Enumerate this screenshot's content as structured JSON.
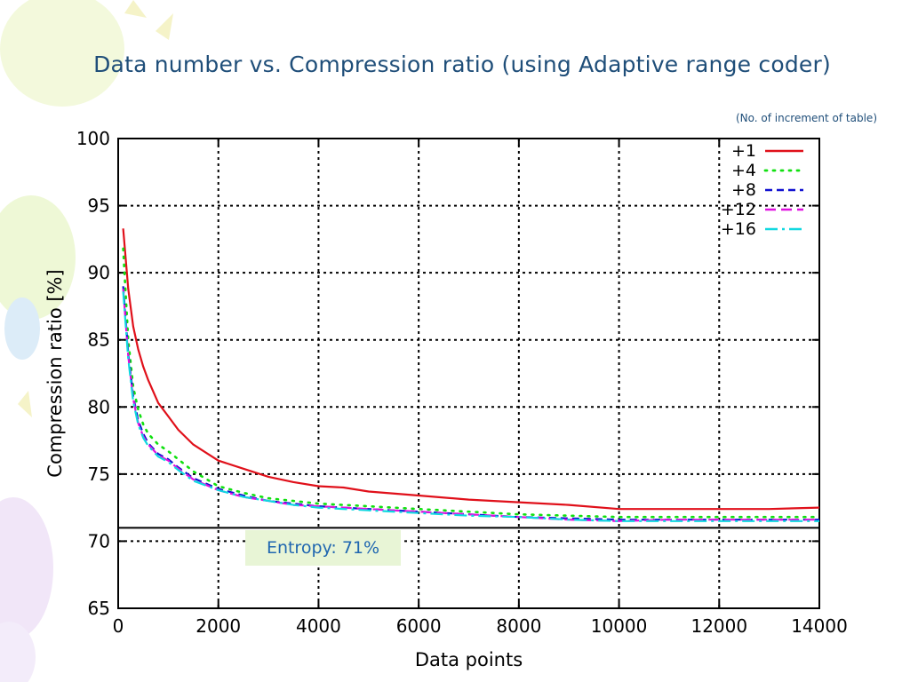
{
  "slide": {
    "title": "Data number vs. Compression ratio (using Adaptive range coder)",
    "subtitle": "(No. of increment of table)",
    "entropy_label": "Entropy: 71%"
  },
  "colors": {
    "title": "#1f4e79",
    "entropy_bg": "#e8f5d6",
    "entropy_text": "#1f66b0"
  },
  "chart_data": {
    "type": "line",
    "title": "",
    "xlabel": "Data points",
    "ylabel": "Compression ratio [%]",
    "xlim": [
      0,
      14000
    ],
    "ylim": [
      65,
      100
    ],
    "xticks": [
      0,
      2000,
      4000,
      6000,
      8000,
      10000,
      12000,
      14000
    ],
    "yticks": [
      65,
      70,
      75,
      80,
      85,
      90,
      95,
      100
    ],
    "grid": true,
    "legend_position": "top-right",
    "reference_line": {
      "y": 71,
      "label": "Entropy: 71%"
    },
    "series": [
      {
        "name": "+1",
        "color": "#e0101a",
        "dash": "solid",
        "x": [
          100,
          200,
          300,
          400,
          500,
          600,
          800,
          1000,
          1200,
          1500,
          2000,
          2500,
          3000,
          3500,
          4000,
          4500,
          5000,
          6000,
          7000,
          8000,
          9000,
          10000,
          11000,
          12000,
          13000,
          14000
        ],
        "y": [
          93.3,
          88.8,
          86.0,
          84.3,
          83.0,
          82.0,
          80.3,
          79.3,
          78.3,
          77.2,
          76.0,
          75.4,
          74.8,
          74.4,
          74.1,
          74.0,
          73.7,
          73.4,
          73.1,
          72.9,
          72.7,
          72.4,
          72.4,
          72.4,
          72.4,
          72.5
        ]
      },
      {
        "name": "+4",
        "color": "#10e010",
        "dash": "dotted",
        "x": [
          100,
          200,
          300,
          400,
          500,
          600,
          800,
          1000,
          1200,
          1500,
          2000,
          2500,
          3000,
          3500,
          4000,
          5000,
          6000,
          7000,
          8000,
          9000,
          10000,
          11000,
          12000,
          13000,
          14000
        ],
        "y": [
          91.8,
          85.0,
          81.5,
          79.8,
          78.7,
          78.0,
          77.2,
          76.7,
          76.1,
          75.2,
          74.1,
          73.6,
          73.2,
          73.0,
          72.8,
          72.6,
          72.4,
          72.2,
          72.0,
          71.9,
          71.8,
          71.8,
          71.8,
          71.8,
          71.8
        ]
      },
      {
        "name": "+8",
        "color": "#1010d0",
        "dash": "dashed",
        "x": [
          100,
          200,
          300,
          400,
          500,
          600,
          800,
          1000,
          1200,
          1500,
          2000,
          2500,
          3000,
          3500,
          4000,
          5000,
          6000,
          7000,
          8000,
          9000,
          10000,
          11000,
          12000,
          13000,
          14000
        ],
        "y": [
          89.0,
          84.0,
          80.8,
          79.0,
          78.0,
          77.3,
          76.5,
          76.1,
          75.5,
          74.7,
          73.9,
          73.4,
          73.0,
          72.8,
          72.6,
          72.4,
          72.2,
          72.0,
          71.8,
          71.7,
          71.6,
          71.6,
          71.6,
          71.6,
          71.6
        ]
      },
      {
        "name": "+12",
        "color": "#e010e0",
        "dash": "long-dash",
        "x": [
          100,
          200,
          300,
          400,
          500,
          600,
          800,
          1000,
          1200,
          1500,
          2000,
          2500,
          3000,
          3500,
          4000,
          5000,
          6000,
          7000,
          8000,
          9000,
          10000,
          11000,
          12000,
          13000,
          14000
        ],
        "y": [
          88.8,
          83.8,
          80.6,
          78.8,
          77.8,
          77.2,
          76.4,
          76.0,
          75.4,
          74.6,
          73.8,
          73.3,
          73.0,
          72.7,
          72.6,
          72.4,
          72.2,
          72.0,
          71.8,
          71.6,
          71.5,
          71.6,
          71.6,
          71.6,
          71.6
        ]
      },
      {
        "name": "+16",
        "color": "#10d8e0",
        "dash": "dash-dot",
        "x": [
          100,
          200,
          300,
          400,
          500,
          600,
          800,
          1000,
          1200,
          1500,
          2000,
          2500,
          3000,
          3500,
          4000,
          5000,
          6000,
          7000,
          8000,
          9000,
          10000,
          11000,
          12000,
          13000,
          14000
        ],
        "y": [
          88.6,
          83.6,
          80.4,
          78.7,
          77.7,
          77.1,
          76.3,
          75.9,
          75.3,
          74.5,
          73.8,
          73.3,
          73.0,
          72.7,
          72.5,
          72.3,
          72.1,
          71.9,
          71.8,
          71.6,
          71.5,
          71.5,
          71.5,
          71.5,
          71.5
        ]
      }
    ]
  }
}
